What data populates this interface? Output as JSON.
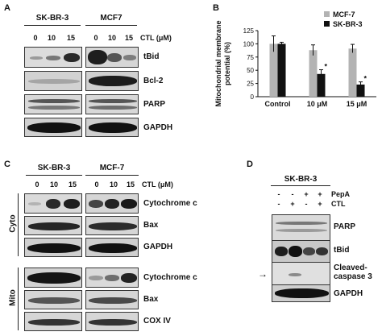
{
  "panels": {
    "A": {
      "letter": "A",
      "cell1": "SK-BR-3",
      "cell2": "MCF7",
      "lanes": [
        "0",
        "10",
        "15"
      ],
      "ctl_label": "CTL (μM)",
      "rows": [
        "tBid",
        "Bcl-2",
        "PARP",
        "GAPDH"
      ]
    },
    "B": {
      "letter": "B"
    },
    "C": {
      "letter": "C",
      "cell1": "SK-BR-3",
      "cell2": "MCF-7",
      "lanes": [
        "0",
        "10",
        "15"
      ],
      "ctl_label": "CTL (μM)",
      "groups": [
        {
          "label": "Cyto",
          "rows": [
            "Cytochrome c",
            "Bax",
            "GAPDH"
          ]
        },
        {
          "label": "Mito",
          "rows": [
            "Cytochrome c",
            "Bax",
            "COX IV"
          ]
        }
      ]
    },
    "D": {
      "letter": "D",
      "cell": "SK-BR-3",
      "pepa_label": "PepA",
      "ctl_label": "CTL",
      "pepa_signs": [
        "-",
        "-",
        "+",
        "+"
      ],
      "ctl_signs": [
        "-",
        "+",
        "-",
        "+"
      ],
      "rows": [
        "PARP",
        "tBid",
        "Cleaved-\ncaspase 3",
        "GAPDH"
      ],
      "arrow": "→"
    }
  },
  "chart_data": {
    "type": "bar",
    "categories": [
      "Control",
      "10 μM",
      "15 μM"
    ],
    "series": [
      {
        "name": "MCF-7",
        "values": [
          100,
          88,
          91
        ],
        "errors": [
          15,
          10,
          8
        ],
        "color": "#b3b3b3"
      },
      {
        "name": "SK-BR-3",
        "values": [
          100,
          43,
          23
        ],
        "errors": [
          3,
          8,
          5
        ],
        "color": "#111111"
      }
    ],
    "significance": [
      null,
      "*",
      "*"
    ],
    "ylabel": "Mitochondrial membrane\npotential (%)",
    "yticks": [
      0,
      25,
      50,
      75,
      100,
      125
    ],
    "ylim": [
      0,
      125
    ],
    "legend": "top-right",
    "grid": false
  }
}
